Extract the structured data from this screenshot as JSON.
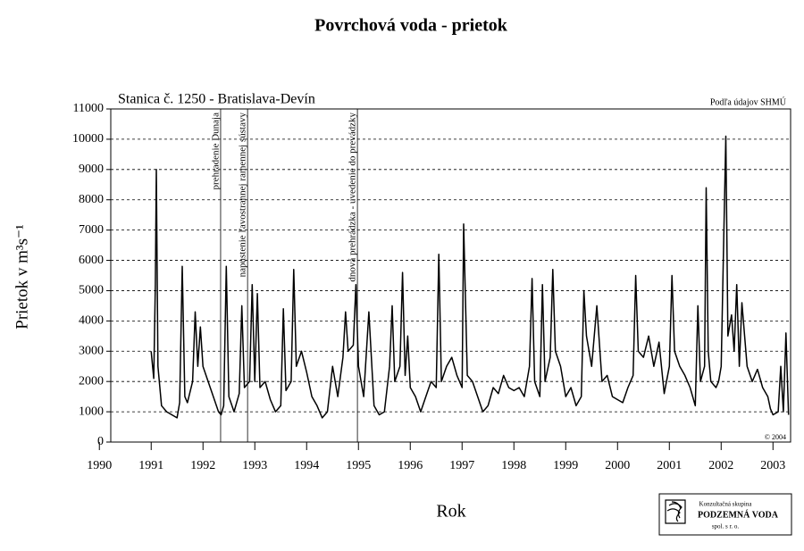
{
  "chart_data": {
    "type": "line",
    "title": "Povrchová voda - prietok",
    "subtitle": "Stanica č. 1250 - Bratislava-Devín",
    "source": "Podľa údajov SHMÚ",
    "copyright": "© 2004",
    "x_label": "Rok",
    "y_label": "Prietok v m³s⁻¹",
    "logo": {
      "line1": "Konzultačná skupina",
      "line2": "PODZEMNÁ VODA",
      "line3": "spol. s r. o."
    },
    "xlim": [
      1990.22,
      2003.34
    ],
    "xticks": [
      1990,
      1991,
      1992,
      1993,
      1994,
      1995,
      1996,
      1997,
      1998,
      1999,
      2000,
      2001,
      2002,
      2003
    ],
    "ylim": [
      0,
      11000
    ],
    "yticks": [
      0,
      1000,
      2000,
      3000,
      4000,
      5000,
      6000,
      7000,
      8000,
      9000,
      10000,
      11000
    ],
    "grid": true,
    "events": [
      {
        "x": 1992.34,
        "label": "prehradenie Dunaja"
      },
      {
        "x": 1992.86,
        "label": "napustenie ľavostrannej ramennej sústavy"
      },
      {
        "x": 1994.98,
        "label": "dnová prehrádzka - uvedenie do prevádzky"
      }
    ],
    "x": [
      1991.0,
      1991.05,
      1991.08,
      1991.1,
      1991.13,
      1991.2,
      1991.3,
      1991.4,
      1991.5,
      1991.55,
      1991.6,
      1991.65,
      1991.7,
      1991.8,
      1991.85,
      1991.9,
      1991.95,
      1992.0,
      1992.1,
      1992.2,
      1992.3,
      1992.35,
      1992.4,
      1992.45,
      1992.5,
      1992.6,
      1992.7,
      1992.75,
      1992.8,
      1992.9,
      1992.95,
      1993.0,
      1993.05,
      1993.1,
      1993.2,
      1993.3,
      1993.4,
      1993.5,
      1993.55,
      1993.6,
      1993.7,
      1993.75,
      1993.8,
      1993.9,
      1994.0,
      1994.1,
      1994.2,
      1994.3,
      1994.4,
      1994.5,
      1994.6,
      1994.7,
      1994.75,
      1994.8,
      1994.9,
      1994.95,
      1995.0,
      1995.1,
      1995.2,
      1995.3,
      1995.4,
      1995.5,
      1995.6,
      1995.65,
      1995.7,
      1995.8,
      1995.85,
      1995.9,
      1995.95,
      1996.0,
      1996.1,
      1996.2,
      1996.3,
      1996.4,
      1996.5,
      1996.55,
      1996.6,
      1996.7,
      1996.8,
      1996.9,
      1997.0,
      1997.03,
      1997.1,
      1997.2,
      1997.3,
      1997.4,
      1997.5,
      1997.6,
      1997.7,
      1997.8,
      1997.9,
      1998.0,
      1998.1,
      1998.2,
      1998.3,
      1998.35,
      1998.4,
      1998.5,
      1998.55,
      1998.6,
      1998.7,
      1998.75,
      1998.8,
      1998.9,
      1999.0,
      1999.1,
      1999.2,
      1999.3,
      1999.35,
      1999.4,
      1999.5,
      1999.6,
      1999.7,
      1999.8,
      1999.9,
      2000.0,
      2000.1,
      2000.2,
      2000.3,
      2000.35,
      2000.4,
      2000.5,
      2000.6,
      2000.7,
      2000.8,
      2000.9,
      2001.0,
      2001.05,
      2001.1,
      2001.2,
      2001.3,
      2001.4,
      2001.5,
      2001.55,
      2001.6,
      2001.68,
      2001.71,
      2001.75,
      2001.8,
      2001.9,
      2001.95,
      2002.0,
      2002.05,
      2002.09,
      2002.13,
      2002.2,
      2002.25,
      2002.3,
      2002.35,
      2002.4,
      2002.5,
      2002.6,
      2002.7,
      2002.8,
      2002.9,
      2002.95,
      2003.0,
      2003.1,
      2003.15,
      2003.2,
      2003.25,
      2003.3
    ],
    "series": [
      {
        "name": "Prietok",
        "color": "#000000",
        "values": [
          3000,
          2100,
          5200,
          9000,
          2500,
          1200,
          1000,
          900,
          800,
          1300,
          5800,
          1500,
          1300,
          2000,
          4300,
          2500,
          3800,
          2500,
          2000,
          1500,
          1000,
          900,
          1200,
          5800,
          1500,
          1000,
          1600,
          4500,
          1800,
          2000,
          5200,
          2000,
          4900,
          1800,
          2000,
          1400,
          1000,
          1200,
          4400,
          1700,
          2000,
          5700,
          2500,
          3000,
          2300,
          1500,
          1200,
          800,
          1000,
          2500,
          1500,
          2800,
          4300,
          3000,
          3200,
          5200,
          2500,
          1500,
          4300,
          1200,
          900,
          1000,
          2500,
          4500,
          2000,
          2500,
          5600,
          2200,
          3500,
          1800,
          1500,
          1000,
          1500,
          2000,
          1800,
          6200,
          2000,
          2500,
          2800,
          2200,
          1800,
          7200,
          2200,
          2000,
          1500,
          1000,
          1200,
          1800,
          1600,
          2200,
          1800,
          1700,
          1800,
          1500,
          2500,
          5400,
          2000,
          1500,
          5200,
          2000,
          2800,
          5700,
          3000,
          2500,
          1500,
          1800,
          1200,
          1500,
          5000,
          3500,
          2500,
          4500,
          2000,
          2200,
          1500,
          1400,
          1300,
          1800,
          2200,
          5500,
          3000,
          2800,
          3500,
          2500,
          3300,
          1600,
          2500,
          5500,
          3000,
          2500,
          2200,
          1800,
          1200,
          4500,
          2000,
          2500,
          8400,
          3000,
          2000,
          1800,
          2000,
          2500,
          6800,
          10100,
          3500,
          4200,
          3000,
          5200,
          2500,
          4600,
          2500,
          2000,
          2400,
          1800,
          1500,
          1100,
          900,
          1000,
          2500,
          1000,
          3600,
          900
        ]
      }
    ]
  }
}
